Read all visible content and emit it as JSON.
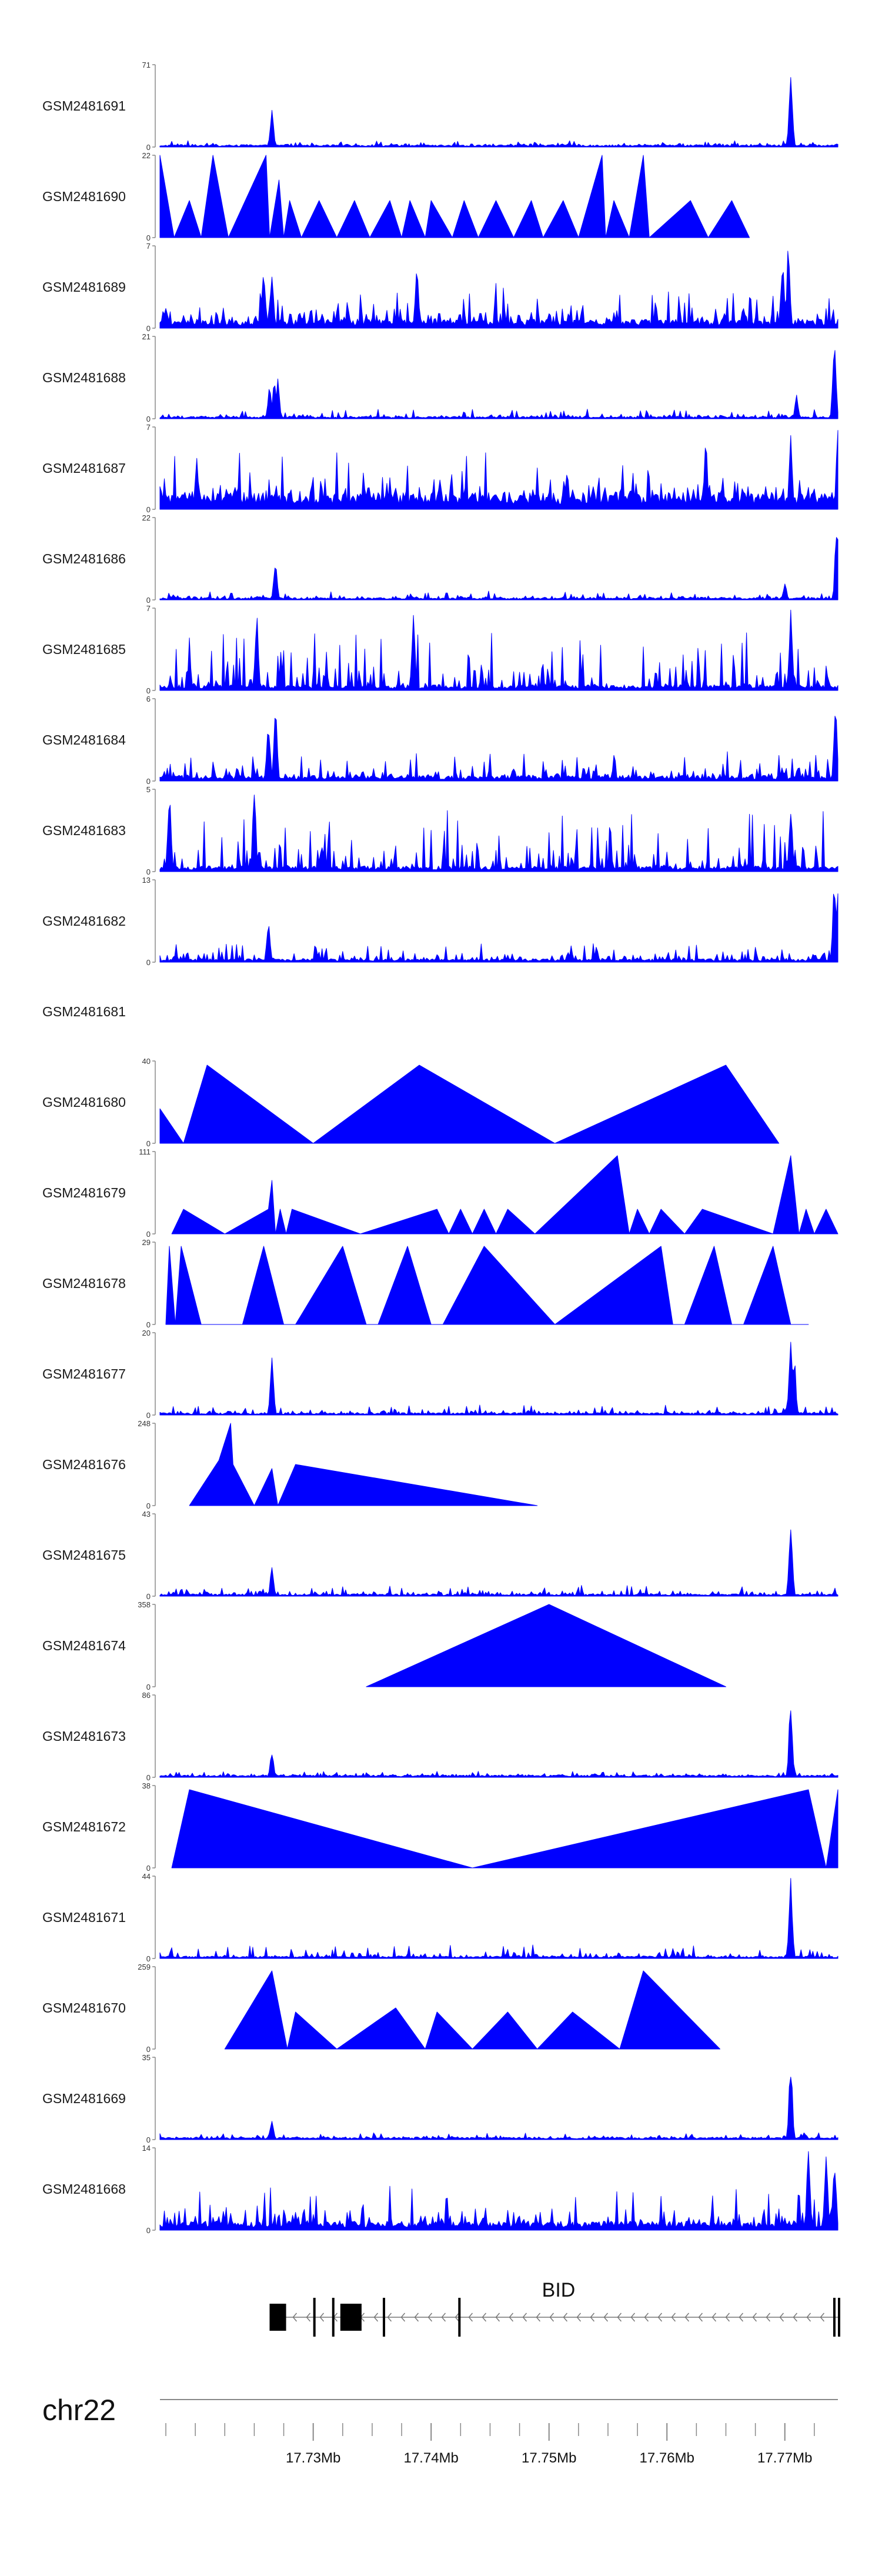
{
  "chart_data": {
    "type": "area",
    "title": "",
    "chromosome": "chr22",
    "xlim": [
      17.717,
      17.7745
    ],
    "color": "#0000ff",
    "xaxis": {
      "ticks": [
        {
          "value": 17.73,
          "label": "17.73Mb"
        },
        {
          "value": 17.74,
          "label": "17.74Mb"
        },
        {
          "value": 17.75,
          "label": "17.75Mb"
        },
        {
          "value": 17.76,
          "label": "17.76Mb"
        },
        {
          "value": 17.77,
          "label": "17.77Mb"
        }
      ]
    },
    "gene": {
      "name": "BID",
      "start": 17.7263,
      "end": 17.7745,
      "strand": "-",
      "exons": [
        {
          "start": 17.7263,
          "end": 17.7277
        },
        {
          "start": 17.73,
          "end": 17.7302
        },
        {
          "start": 17.7316,
          "end": 17.7318
        },
        {
          "start": 17.7323,
          "end": 17.7341
        },
        {
          "start": 17.7359,
          "end": 17.7361
        },
        {
          "start": 17.7423,
          "end": 17.7424
        },
        {
          "start": 17.7741,
          "end": 17.7743
        },
        {
          "start": 17.7746,
          "end": 17.7747
        }
      ]
    },
    "series": [
      {
        "name": "GSM2481691",
        "ymax": "71",
        "kind": "peaks",
        "base": 0.02,
        "noise": 0.05,
        "spikes": [
          [
            17.7265,
            0.45
          ],
          [
            17.7705,
            1.0
          ]
        ]
      },
      {
        "name": "GSM2481690",
        "ymax": "22",
        "kind": "tri",
        "points": [
          [
            17.717,
            1.0
          ],
          [
            17.7182,
            0
          ],
          [
            17.7195,
            0.45
          ],
          [
            17.7205,
            0
          ],
          [
            17.7215,
            1.0
          ],
          [
            17.7228,
            0
          ],
          [
            17.726,
            1.0
          ],
          [
            17.7263,
            0
          ],
          [
            17.7271,
            0.7
          ],
          [
            17.7275,
            0
          ],
          [
            17.728,
            0.45
          ],
          [
            17.729,
            0
          ],
          [
            17.7305,
            0.45
          ],
          [
            17.732,
            0
          ],
          [
            17.7335,
            0.45
          ],
          [
            17.7348,
            0
          ],
          [
            17.7365,
            0.45
          ],
          [
            17.7375,
            0
          ],
          [
            17.7382,
            0.45
          ],
          [
            17.7395,
            0
          ],
          [
            17.74,
            0.45
          ],
          [
            17.7418,
            0
          ],
          [
            17.7428,
            0.45
          ],
          [
            17.744,
            0
          ],
          [
            17.7455,
            0.45
          ],
          [
            17.747,
            0
          ],
          [
            17.7485,
            0.45
          ],
          [
            17.7495,
            0
          ],
          [
            17.7512,
            0.45
          ],
          [
            17.7525,
            0
          ],
          [
            17.7545,
            1.0
          ],
          [
            17.7548,
            0
          ],
          [
            17.7555,
            0.45
          ],
          [
            17.7568,
            0
          ],
          [
            17.758,
            1.0
          ],
          [
            17.7585,
            0
          ],
          [
            17.762,
            0.45
          ],
          [
            17.7635,
            0
          ],
          [
            17.7655,
            0.45
          ],
          [
            17.767,
            0
          ]
        ]
      },
      {
        "name": "GSM2481689",
        "ymax": "7",
        "kind": "peaks",
        "base": 0.08,
        "noise": 0.45,
        "spikes": [
          [
            17.7258,
            0.75
          ],
          [
            17.7265,
            0.75
          ],
          [
            17.7388,
            0.8
          ],
          [
            17.7698,
            0.9
          ],
          [
            17.7703,
            1.0
          ]
        ]
      },
      {
        "name": "GSM2481688",
        "ymax": "21",
        "kind": "peaks",
        "base": 0.02,
        "noise": 0.1,
        "spikes": [
          [
            17.7263,
            0.45
          ],
          [
            17.7267,
            0.55
          ],
          [
            17.727,
            0.5
          ],
          [
            17.771,
            0.3
          ],
          [
            17.7742,
            1.0
          ]
        ]
      },
      {
        "name": "GSM2481687",
        "ymax": "7",
        "kind": "peaks",
        "base": 0.15,
        "noise": 0.55,
        "spikes": [
          [
            17.7745,
            1.0
          ],
          [
            17.7705,
            0.9
          ],
          [
            17.7633,
            0.8
          ]
        ]
      },
      {
        "name": "GSM2481686",
        "ymax": "22",
        "kind": "peaks",
        "base": 0.02,
        "noise": 0.08,
        "spikes": [
          [
            17.7268,
            0.5
          ],
          [
            17.77,
            0.2
          ],
          [
            17.7744,
            1.0
          ]
        ]
      },
      {
        "name": "GSM2481685",
        "ymax": "7",
        "kind": "peaks",
        "base": 0.05,
        "noise": 0.65,
        "spikes": [
          [
            17.7252,
            0.95
          ],
          [
            17.7385,
            1.0
          ],
          [
            17.7705,
            1.0
          ]
        ]
      },
      {
        "name": "GSM2481684",
        "ymax": "6",
        "kind": "peaks",
        "base": 0.05,
        "noise": 0.3,
        "spikes": [
          [
            17.7262,
            0.75
          ],
          [
            17.7268,
            0.95
          ],
          [
            17.7743,
            0.95
          ]
        ]
      },
      {
        "name": "GSM2481683",
        "ymax": "5",
        "kind": "peaks",
        "base": 0.05,
        "noise": 0.7,
        "spikes": [
          [
            17.7178,
            1.0
          ],
          [
            17.725,
            1.0
          ],
          [
            17.7705,
            0.8
          ]
        ]
      },
      {
        "name": "GSM2481682",
        "ymax": "13",
        "kind": "peaks",
        "base": 0.03,
        "noise": 0.2,
        "spikes": [
          [
            17.7262,
            0.55
          ],
          [
            17.7742,
            1.0
          ],
          [
            17.7745,
            0.95
          ]
        ]
      },
      {
        "name": "GSM2481681",
        "ymax": "",
        "kind": "empty"
      },
      {
        "name": "GSM2481680",
        "ymax": "40",
        "kind": "tri",
        "points": [
          [
            17.717,
            0.42
          ],
          [
            17.719,
            0
          ],
          [
            17.721,
            0.95
          ],
          [
            17.73,
            0
          ],
          [
            17.739,
            0.95
          ],
          [
            17.7505,
            0
          ],
          [
            17.765,
            0.95
          ],
          [
            17.7695,
            0
          ]
        ]
      },
      {
        "name": "GSM2481679",
        "ymax": "111",
        "kind": "tri",
        "points": [
          [
            17.718,
            0
          ],
          [
            17.719,
            0.3
          ],
          [
            17.7225,
            0
          ],
          [
            17.7262,
            0.3
          ],
          [
            17.7265,
            0.65
          ],
          [
            17.7268,
            0
          ],
          [
            17.7272,
            0.3
          ],
          [
            17.7277,
            0
          ],
          [
            17.7282,
            0.3
          ],
          [
            17.734,
            0
          ],
          [
            17.7405,
            0.3
          ],
          [
            17.7415,
            0
          ],
          [
            17.7425,
            0.3
          ],
          [
            17.7435,
            0
          ],
          [
            17.7445,
            0.3
          ],
          [
            17.7455,
            0
          ],
          [
            17.7465,
            0.3
          ],
          [
            17.7488,
            0
          ],
          [
            17.7558,
            0.95
          ],
          [
            17.7568,
            0
          ],
          [
            17.7575,
            0.3
          ],
          [
            17.7585,
            0
          ],
          [
            17.7595,
            0.3
          ],
          [
            17.7615,
            0
          ],
          [
            17.763,
            0.3
          ],
          [
            17.769,
            0
          ],
          [
            17.7705,
            0.95
          ],
          [
            17.7712,
            0
          ],
          [
            17.7718,
            0.3
          ],
          [
            17.7725,
            0
          ],
          [
            17.7735,
            0.3
          ],
          [
            17.775,
            0
          ]
        ]
      },
      {
        "name": "GSM2481678",
        "ymax": "29",
        "kind": "tri",
        "points": [
          [
            17.7175,
            0
          ],
          [
            17.7178,
            0.95
          ],
          [
            17.7183,
            0
          ],
          [
            17.7188,
            0.95
          ],
          [
            17.7205,
            0
          ],
          [
            17.724,
            0
          ],
          [
            17.7258,
            0.95
          ],
          [
            17.7275,
            0
          ],
          [
            17.7285,
            0
          ],
          [
            17.7325,
            0.95
          ],
          [
            17.7345,
            0
          ],
          [
            17.7355,
            0
          ],
          [
            17.738,
            0.95
          ],
          [
            17.74,
            0
          ],
          [
            17.741,
            0
          ],
          [
            17.7445,
            0.95
          ],
          [
            17.7505,
            0
          ],
          [
            17.7595,
            0.95
          ],
          [
            17.7605,
            0
          ],
          [
            17.7615,
            0
          ],
          [
            17.764,
            0.95
          ],
          [
            17.7655,
            0
          ],
          [
            17.7665,
            0
          ],
          [
            17.769,
            0.95
          ],
          [
            17.7705,
            0
          ],
          [
            17.772,
            0
          ]
        ]
      },
      {
        "name": "GSM2481677",
        "ymax": "20",
        "kind": "peaks",
        "base": 0.02,
        "noise": 0.1,
        "spikes": [
          [
            17.7265,
            0.8
          ],
          [
            17.7705,
            1.0
          ],
          [
            17.7708,
            0.7
          ]
        ]
      },
      {
        "name": "GSM2481676",
        "ymax": "248",
        "kind": "tri",
        "points": [
          [
            17.7195,
            0
          ],
          [
            17.722,
            0.55
          ],
          [
            17.723,
            1.0
          ],
          [
            17.7232,
            0.5
          ],
          [
            17.725,
            0
          ],
          [
            17.7265,
            0.45
          ],
          [
            17.727,
            0
          ],
          [
            17.7285,
            0.5
          ],
          [
            17.749,
            0
          ]
        ]
      },
      {
        "name": "GSM2481675",
        "ymax": "43",
        "kind": "peaks",
        "base": 0.02,
        "noise": 0.12,
        "spikes": [
          [
            17.7265,
            0.35
          ],
          [
            17.7705,
            1.0
          ]
        ]
      },
      {
        "name": "GSM2481674",
        "ymax": "358",
        "kind": "tri",
        "points": [
          [
            17.7345,
            0
          ],
          [
            17.75,
            1.0
          ],
          [
            17.765,
            0
          ]
        ]
      },
      {
        "name": "GSM2481673",
        "ymax": "86",
        "kind": "peaks",
        "base": 0.02,
        "noise": 0.05,
        "spikes": [
          [
            17.7265,
            0.35
          ],
          [
            17.7705,
            1.0
          ]
        ]
      },
      {
        "name": "GSM2481672",
        "ymax": "38",
        "kind": "tri",
        "points": [
          [
            17.718,
            0
          ],
          [
            17.7195,
            0.95
          ],
          [
            17.7435,
            0
          ],
          [
            17.772,
            0.95
          ],
          [
            17.7735,
            0
          ],
          [
            17.775,
            0.95
          ],
          [
            17.7765,
            0
          ]
        ]
      },
      {
        "name": "GSM2481671",
        "ymax": "44",
        "kind": "peaks",
        "base": 0.02,
        "noise": 0.15,
        "spikes": [
          [
            17.7705,
            1.0
          ]
        ]
      },
      {
        "name": "GSM2481670",
        "ymax": "259",
        "kind": "tri",
        "points": [
          [
            17.7225,
            0
          ],
          [
            17.7265,
            0.95
          ],
          [
            17.7278,
            0
          ],
          [
            17.7285,
            0.45
          ],
          [
            17.732,
            0
          ],
          [
            17.737,
            0.5
          ],
          [
            17.7395,
            0
          ],
          [
            17.7405,
            0.45
          ],
          [
            17.7435,
            0
          ],
          [
            17.7465,
            0.45
          ],
          [
            17.749,
            0
          ],
          [
            17.752,
            0.45
          ],
          [
            17.756,
            0
          ],
          [
            17.758,
            0.95
          ],
          [
            17.7645,
            0
          ]
        ]
      },
      {
        "name": "GSM2481669",
        "ymax": "35",
        "kind": "peaks",
        "base": 0.02,
        "noise": 0.06,
        "spikes": [
          [
            17.7265,
            0.25
          ],
          [
            17.7705,
            1.0
          ]
        ]
      },
      {
        "name": "GSM2481668",
        "ymax": "14",
        "kind": "peaks",
        "base": 0.08,
        "noise": 0.45,
        "spikes": [
          [
            17.772,
            1.0
          ],
          [
            17.7735,
            0.95
          ],
          [
            17.7742,
            0.85
          ]
        ]
      }
    ]
  }
}
